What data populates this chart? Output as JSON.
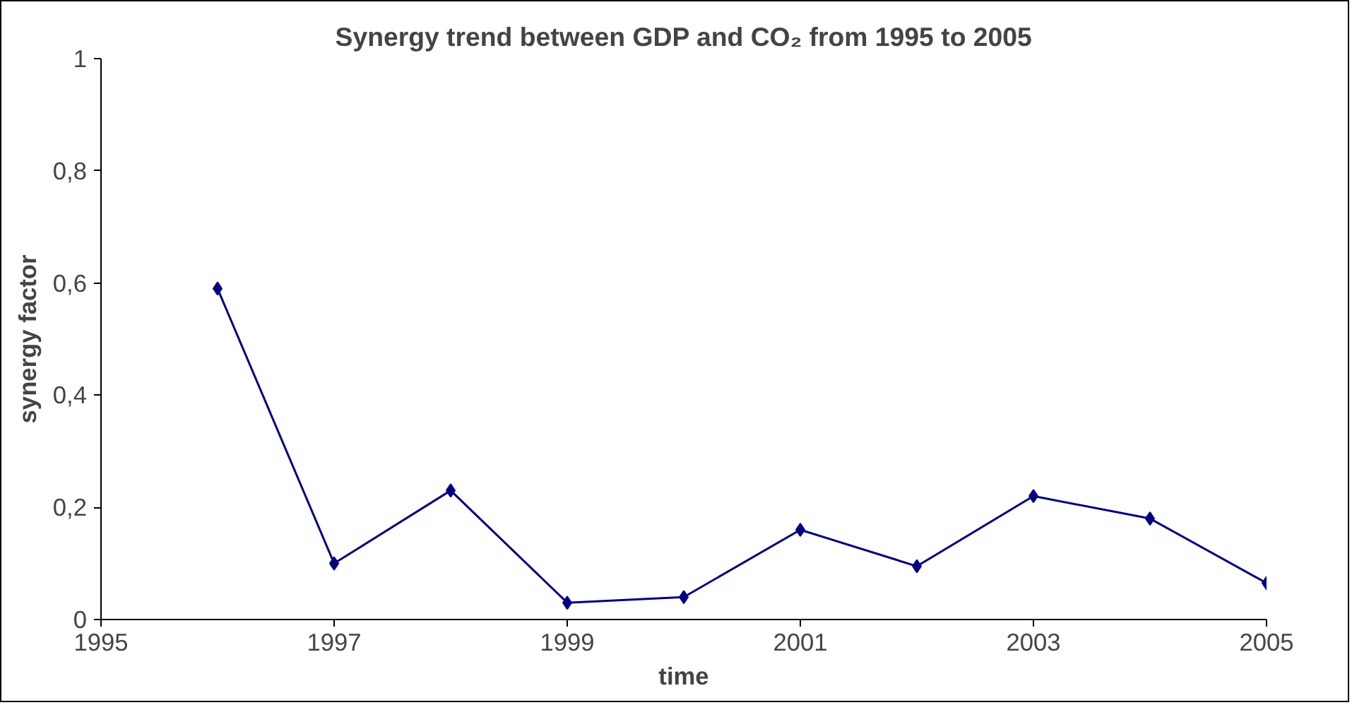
{
  "chart_data": {
    "type": "line",
    "title": "Synergy trend between GDP and CO₂ from 1995 to 2005",
    "xlabel": "time",
    "ylabel": "synergy factor",
    "x": [
      1996,
      1997,
      1998,
      1999,
      2000,
      2001,
      2002,
      2003,
      2004,
      2005
    ],
    "series": [
      {
        "color": "#000080",
        "values": [
          0.59,
          0.1,
          0.23,
          0.03,
          0.04,
          0.16,
          0.095,
          0.22,
          0.18,
          0.065
        ]
      }
    ],
    "xlim": [
      1995,
      2005
    ],
    "xticks": [
      1995,
      1997,
      1999,
      2001,
      2003,
      2005
    ],
    "ylim": [
      0,
      1
    ],
    "yticks": [
      0,
      {
        "value": 0.2,
        "label": "0,2"
      },
      {
        "value": 0.4,
        "label": "0,4"
      },
      {
        "value": 0.6,
        "label": "0,6"
      },
      {
        "value": 0.8,
        "label": "0,8"
      },
      1
    ],
    "marker": "diamond",
    "line_style": "solid"
  }
}
